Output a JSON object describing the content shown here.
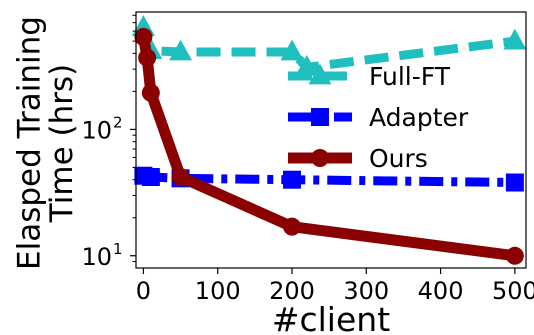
{
  "chart_data": {
    "type": "line",
    "xlabel": "#client",
    "ylabel": "Elasped Training Time (hrs)",
    "yscale": "log",
    "xlim": [
      -10,
      515
    ],
    "ylim": [
      8,
      850
    ],
    "x_ticks": [
      {
        "value": 0,
        "label": "0"
      },
      {
        "value": 100,
        "label": "100"
      },
      {
        "value": 200,
        "label": "200"
      },
      {
        "value": 300,
        "label": "300"
      },
      {
        "value": 400,
        "label": "400"
      },
      {
        "value": 500,
        "label": "500"
      }
    ],
    "y_ticks": [
      {
        "value": 10,
        "base": "10",
        "exp": "1"
      },
      {
        "value": 100,
        "base": "10",
        "exp": "2"
      }
    ],
    "grid": false,
    "legend_position": "right",
    "series": [
      {
        "name": "Full-FT",
        "color": "#1fbfbf",
        "marker": "triangle",
        "line": "dashed",
        "x": [
          0,
          10,
          50,
          200,
          220,
          500
        ],
        "y": [
          640,
          420,
          410,
          410,
          310,
          500
        ]
      },
      {
        "name": "Adapter",
        "color": "#0000ff",
        "marker": "square",
        "line": "dashdot",
        "x": [
          0,
          10,
          50,
          200,
          500
        ],
        "y": [
          43,
          42,
          41,
          40,
          38
        ]
      },
      {
        "name": "Ours",
        "color": "#8b0000",
        "marker": "circle",
        "line": "solid",
        "x": [
          0,
          5,
          10,
          50,
          200,
          500
        ],
        "y": [
          540,
          370,
          195,
          42,
          17,
          10
        ]
      }
    ]
  }
}
